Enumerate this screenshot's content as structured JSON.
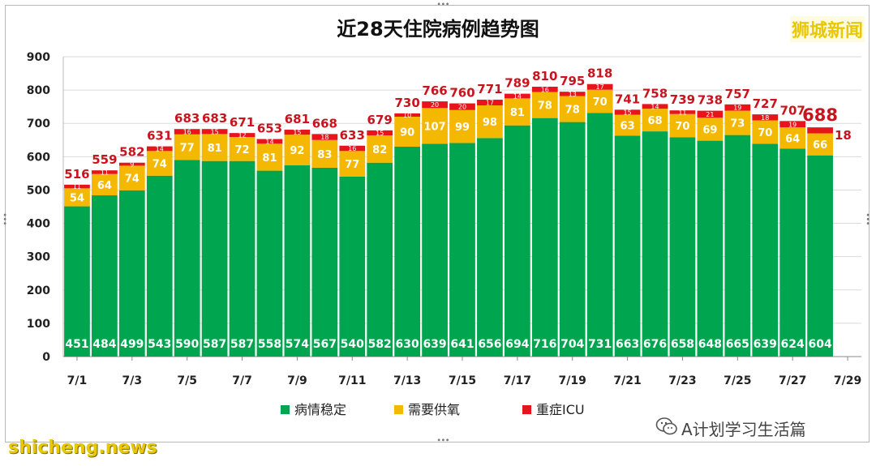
{
  "source_label": "狮城新闻",
  "watermark": "A计划学习生活篇",
  "site": "shicheng.news",
  "colors": {
    "stable": "#00a64f",
    "oxygen": "#f5b800",
    "icu": "#e8141c",
    "label": "#c8141c"
  },
  "chart_data": {
    "type": "bar",
    "stacked": true,
    "title": "近28天住院病例趋势图",
    "xlabel": "",
    "ylabel": "",
    "ylim": [
      0,
      900
    ],
    "yticks": [
      "0",
      "100",
      "200",
      "300",
      "400",
      "500",
      "600",
      "700",
      "800",
      "900"
    ],
    "legend_position": "bottom",
    "x_tick_labels": [
      "7/1",
      "7/3",
      "7/5",
      "7/7",
      "7/9",
      "7/11",
      "7/13",
      "7/15",
      "7/17",
      "7/19",
      "7/21",
      "7/23",
      "7/25",
      "7/27",
      "7/29"
    ],
    "categories": [
      "7/1",
      "7/2",
      "7/3",
      "7/4",
      "7/5",
      "7/6",
      "7/7",
      "7/8",
      "7/9",
      "7/10",
      "7/11",
      "7/12",
      "7/13",
      "7/14",
      "7/15",
      "7/16",
      "7/17",
      "7/18",
      "7/19",
      "7/20",
      "7/21",
      "7/22",
      "7/23",
      "7/24",
      "7/25",
      "7/26",
      "7/27",
      "7/28",
      "7/29"
    ],
    "series": [
      {
        "name": "病情稳定",
        "values": [
          451,
          484,
          499,
          543,
          590,
          587,
          587,
          558,
          574,
          567,
          540,
          582,
          630,
          639,
          641,
          656,
          694,
          716,
          704,
          731,
          663,
          676,
          658,
          648,
          665,
          639,
          624,
          604,
          null
        ]
      },
      {
        "name": "需要供氧",
        "values": [
          54,
          64,
          74,
          74,
          77,
          81,
          72,
          81,
          92,
          83,
          77,
          82,
          90,
          107,
          99,
          98,
          81,
          78,
          78,
          70,
          63,
          68,
          70,
          69,
          73,
          70,
          64,
          66,
          null
        ]
      },
      {
        "name": "重症ICU",
        "values": [
          11,
          11,
          9,
          14,
          16,
          15,
          12,
          14,
          15,
          18,
          16,
          15,
          10,
          20,
          20,
          17,
          14,
          16,
          13,
          17,
          15,
          14,
          11,
          21,
          19,
          18,
          19,
          18,
          null
        ]
      }
    ],
    "totals": [
      516,
      559,
      582,
      631,
      683,
      683,
      671,
      653,
      681,
      668,
      633,
      679,
      730,
      766,
      760,
      771,
      789,
      810,
      795,
      818,
      741,
      758,
      739,
      738,
      757,
      727,
      707,
      688,
      null
    ]
  }
}
